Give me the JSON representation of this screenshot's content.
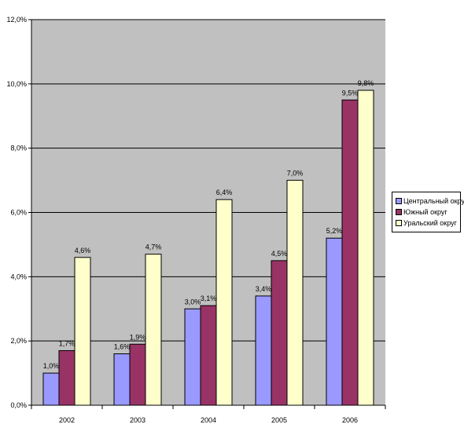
{
  "chart_data": {
    "type": "bar",
    "categories": [
      "2002",
      "2003",
      "2004",
      "2005",
      "2006"
    ],
    "series": [
      {
        "name": "Центральный округ",
        "color": "#9999ff",
        "values": [
          1.0,
          1.6,
          3.0,
          3.4,
          5.2
        ],
        "labels": [
          "1,0%",
          "1,6%",
          "3,0%",
          "3,4%",
          "5,2%"
        ]
      },
      {
        "name": "Южный округ",
        "color": "#993366",
        "values": [
          1.7,
          1.9,
          3.1,
          4.5,
          9.5
        ],
        "labels": [
          "1,7%",
          "1,9%",
          "3,1%",
          "4,5%",
          "9,5%"
        ]
      },
      {
        "name": "Уральский округ",
        "color": "#ffffcc",
        "values": [
          4.6,
          4.7,
          6.4,
          7.0,
          9.8
        ],
        "labels": [
          "4,6%",
          "4,7%",
          "6,4%",
          "7,0%",
          "9,8%"
        ]
      }
    ],
    "yticks": [
      0,
      2,
      4,
      6,
      8,
      10,
      12
    ],
    "ytick_labels": [
      "0,0%",
      "2,0%",
      "4,0%",
      "6,0%",
      "8,0%",
      "10,0%",
      "12,0%"
    ],
    "ylim": [
      0,
      12
    ],
    "grid": true,
    "plot_background": "#c0c0c0",
    "legend_position": "right"
  }
}
